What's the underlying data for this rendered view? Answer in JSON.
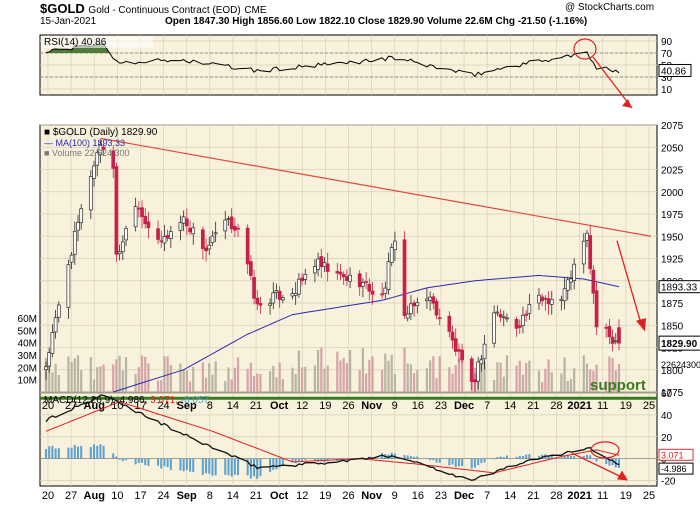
{
  "header": {
    "symbol": "$GOLD",
    "description": "Gold - Continuous Contract (EOD)",
    "exchange": "CME",
    "date": "15-Jan-2021",
    "watermark": "@ StockCharts.com",
    "ohlc_text": "Open 1847.30  High 1856.60  Low 1822.10  Close 1829.90  Volume 22.6M  Chg -21.50 (-1.16%)"
  },
  "colors": {
    "panel_bg": "#f8f1dc",
    "grid": "#d9d0b8",
    "up": "#2a2a2a",
    "down": "#c5224a",
    "ma": "#2a2ab0",
    "trend": "#e04c3c",
    "support": "#3c7a22",
    "rsi_fill": "#4f7a3a",
    "macd": "#111111",
    "signal": "#e02020",
    "hist": "#5aa0d0",
    "annot": "#e02020"
  },
  "rsi_panel": {
    "legend": "RSI(14) 40.86",
    "current_label": "40.86",
    "ticks": [
      90,
      70,
      50,
      30,
      10
    ],
    "levels": [
      70,
      30
    ]
  },
  "price_panel": {
    "legend_title": "$GOLD (Daily) 1829.90",
    "legend_ma": "MA(100) 1893.33",
    "legend_volume": "Volume 22,624,300",
    "ticks": [
      2075,
      2050,
      2025,
      2000,
      1975,
      1950,
      1925,
      1900,
      1875,
      1850,
      1825,
      1800,
      1775
    ],
    "volume_ticks": [
      "60M",
      "50M",
      "40M",
      "30M",
      "20M",
      "10M"
    ],
    "ma_label": "1893.33",
    "close_label": "1829.90",
    "volume_label": "22624300",
    "support_label": "support"
  },
  "macd_panel": {
    "legend_name": "MACD(12,26,9)",
    "legend_macd": "-4.986",
    "legend_signal": "3.071",
    "legend_hist": "-8.057",
    "ticks": [
      60,
      40,
      20,
      0,
      -20
    ],
    "macd_label": "-4.986",
    "signal_label": "3.071"
  },
  "x_axis": {
    "labels": [
      {
        "t": "20",
        "bold": false
      },
      {
        "t": "27",
        "bold": false
      },
      {
        "t": "Aug",
        "bold": true
      },
      {
        "t": "10",
        "bold": false
      },
      {
        "t": "17",
        "bold": false
      },
      {
        "t": "24",
        "bold": false
      },
      {
        "t": "Sep",
        "bold": true
      },
      {
        "t": "8",
        "bold": false
      },
      {
        "t": "14",
        "bold": false
      },
      {
        "t": "21",
        "bold": false
      },
      {
        "t": "Oct",
        "bold": true
      },
      {
        "t": "12",
        "bold": false
      },
      {
        "t": "19",
        "bold": false
      },
      {
        "t": "26",
        "bold": false
      },
      {
        "t": "Nov",
        "bold": true
      },
      {
        "t": "9",
        "bold": false
      },
      {
        "t": "16",
        "bold": false
      },
      {
        "t": "23",
        "bold": false
      },
      {
        "t": "Dec",
        "bold": true
      },
      {
        "t": "7",
        "bold": false
      },
      {
        "t": "14",
        "bold": false
      },
      {
        "t": "21",
        "bold": false
      },
      {
        "t": "28",
        "bold": false
      },
      {
        "t": "2021",
        "bold": true
      },
      {
        "t": "11",
        "bold": false
      },
      {
        "t": "19",
        "bold": false
      },
      {
        "t": "25",
        "bold": false
      }
    ]
  },
  "chart_data": {
    "type": "candlestick",
    "x_range": [
      "2020-07-20",
      "2021-01-25"
    ],
    "price_ylim": [
      1775,
      2075
    ],
    "volume_ylim": [
      0,
      60000000
    ],
    "rsi_ylim": [
      0,
      100
    ],
    "macd_ylim": [
      -25,
      60
    ],
    "price_anchors": [
      [
        "2020-07-20",
        1805
      ],
      [
        "2020-07-27",
        1920
      ],
      [
        "2020-08-03",
        2020
      ],
      [
        "2020-08-06",
        2055
      ],
      [
        "2020-08-10",
        2030
      ],
      [
        "2020-08-11",
        1925
      ],
      [
        "2020-08-17",
        1990
      ],
      [
        "2020-08-24",
        1940
      ],
      [
        "2020-09-01",
        1970
      ],
      [
        "2020-09-08",
        1935
      ],
      [
        "2020-09-14",
        1965
      ],
      [
        "2020-09-18",
        1960
      ],
      [
        "2020-09-24",
        1870
      ],
      [
        "2020-09-28",
        1880
      ],
      [
        "2020-10-06",
        1890
      ],
      [
        "2020-10-12",
        1920
      ],
      [
        "2020-10-19",
        1905
      ],
      [
        "2020-10-26",
        1900
      ],
      [
        "2020-11-02",
        1880
      ],
      [
        "2020-11-06",
        1950
      ],
      [
        "2020-11-09",
        1860
      ],
      [
        "2020-11-16",
        1885
      ],
      [
        "2020-11-23",
        1840
      ],
      [
        "2020-11-30",
        1780
      ],
      [
        "2020-12-07",
        1865
      ],
      [
        "2020-12-14",
        1850
      ],
      [
        "2020-12-21",
        1880
      ],
      [
        "2020-12-28",
        1880
      ],
      [
        "2021-01-05",
        1950
      ],
      [
        "2021-01-08",
        1850
      ],
      [
        "2021-01-11",
        1840
      ],
      [
        "2021-01-15",
        1830
      ]
    ],
    "ma100_anchors": [
      [
        "2020-08-10",
        1775
      ],
      [
        "2020-09-01",
        1800
      ],
      [
        "2020-09-21",
        1840
      ],
      [
        "2020-10-05",
        1862
      ],
      [
        "2020-10-19",
        1870
      ],
      [
        "2020-11-02",
        1878
      ],
      [
        "2020-11-16",
        1892
      ],
      [
        "2020-12-01",
        1900
      ],
      [
        "2020-12-21",
        1906
      ],
      [
        "2021-01-04",
        1902
      ],
      [
        "2021-01-15",
        1893.33
      ]
    ],
    "trendline": [
      [
        "2020-08-06",
        2060
      ],
      [
        "2021-01-25",
        1950
      ]
    ],
    "support_level": 1768,
    "rsi_anchors": [
      [
        "2020-07-20",
        72
      ],
      [
        "2020-08-07",
        86
      ],
      [
        "2020-08-11",
        55
      ],
      [
        "2020-09-01",
        58
      ],
      [
        "2020-09-24",
        40
      ],
      [
        "2020-10-19",
        52
      ],
      [
        "2020-11-06",
        62
      ],
      [
        "2020-11-30",
        33
      ],
      [
        "2020-12-14",
        50
      ],
      [
        "2021-01-05",
        70
      ],
      [
        "2021-01-08",
        44
      ],
      [
        "2021-01-15",
        40.86
      ]
    ],
    "macd_anchors": [
      [
        "2020-07-20",
        35
      ],
      [
        "2020-08-07",
        58
      ],
      [
        "2020-09-01",
        22
      ],
      [
        "2020-09-24",
        -8
      ],
      [
        "2020-10-19",
        -3
      ],
      [
        "2020-11-06",
        3
      ],
      [
        "2020-11-30",
        -20
      ],
      [
        "2020-12-14",
        -5
      ],
      [
        "2021-01-05",
        10
      ],
      [
        "2021-01-15",
        -4.986
      ]
    ],
    "signal_anchors": [
      [
        "2020-07-20",
        25
      ],
      [
        "2020-08-12",
        52
      ],
      [
        "2020-09-10",
        25
      ],
      [
        "2020-10-05",
        -3
      ],
      [
        "2020-10-26",
        0
      ],
      [
        "2020-11-13",
        -5
      ],
      [
        "2020-12-07",
        -13
      ],
      [
        "2020-12-28",
        2
      ],
      [
        "2021-01-08",
        8
      ],
      [
        "2021-01-15",
        3.071
      ]
    ]
  }
}
